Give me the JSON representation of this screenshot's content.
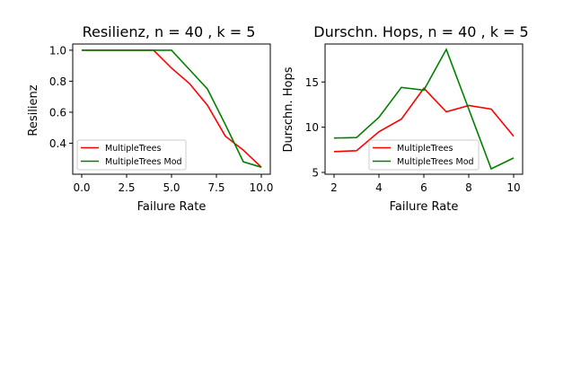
{
  "chart_data": [
    {
      "type": "line",
      "title": "Resilienz, n = 40 , k = 5",
      "xlabel": "Failure Rate",
      "ylabel": "Resilienz",
      "xlim": [
        -0.5,
        10.5
      ],
      "ylim": [
        0.2,
        1.04
      ],
      "xticks": [
        0,
        2.5,
        5,
        7.5,
        10
      ],
      "xtick_labels": [
        "0.0",
        "2.5",
        "5.0",
        "7.5",
        "10.0"
      ],
      "yticks": [
        0.4,
        0.6,
        0.8,
        1.0
      ],
      "ytick_labels": [
        "0.4",
        "0.6",
        "0.8",
        "1.0"
      ],
      "legend_position": "lower-left",
      "grid": false,
      "series": [
        {
          "name": "MultipleTrees",
          "color": "#ff0000",
          "x": [
            0,
            1,
            2,
            3,
            4,
            5,
            6,
            7,
            8,
            9,
            10
          ],
          "y": [
            1.0,
            1.0,
            1.0,
            1.0,
            1.0,
            0.885,
            0.785,
            0.645,
            0.445,
            0.355,
            0.245
          ]
        },
        {
          "name": "MultipleTrees Mod",
          "color": "#008000",
          "x": [
            0,
            1,
            2,
            3,
            4,
            5,
            6,
            7,
            8,
            9,
            10
          ],
          "y": [
            1.0,
            1.0,
            1.0,
            1.0,
            1.0,
            1.0,
            0.875,
            0.75,
            0.52,
            0.28,
            0.245
          ]
        }
      ]
    },
    {
      "type": "line",
      "title": "Durschn. Hops, n = 40 , k = 5",
      "xlabel": "Failure Rate",
      "ylabel": "Durschn. Hops",
      "xlim": [
        1.6,
        10.4
      ],
      "ylim": [
        4.8,
        19.2
      ],
      "xticks": [
        2,
        4,
        6,
        8,
        10
      ],
      "xtick_labels": [
        "2",
        "4",
        "6",
        "8",
        "10"
      ],
      "yticks": [
        5,
        10,
        15
      ],
      "ytick_labels": [
        "5",
        "10",
        "15"
      ],
      "legend_position": "lower-center",
      "grid": false,
      "series": [
        {
          "name": "MultipleTrees",
          "color": "#ff0000",
          "x": [
            2,
            3,
            4,
            5,
            6,
            7,
            8,
            9,
            10
          ],
          "y": [
            7.3,
            7.4,
            9.5,
            10.9,
            14.3,
            11.7,
            12.4,
            12.0,
            9.0
          ]
        },
        {
          "name": "MultipleTrees Mod",
          "color": "#008000",
          "x": [
            2,
            3,
            4,
            5,
            6,
            7,
            8,
            9,
            10
          ],
          "y": [
            8.8,
            8.85,
            11.1,
            14.4,
            14.1,
            18.6,
            12.0,
            5.4,
            6.6
          ]
        }
      ]
    }
  ]
}
